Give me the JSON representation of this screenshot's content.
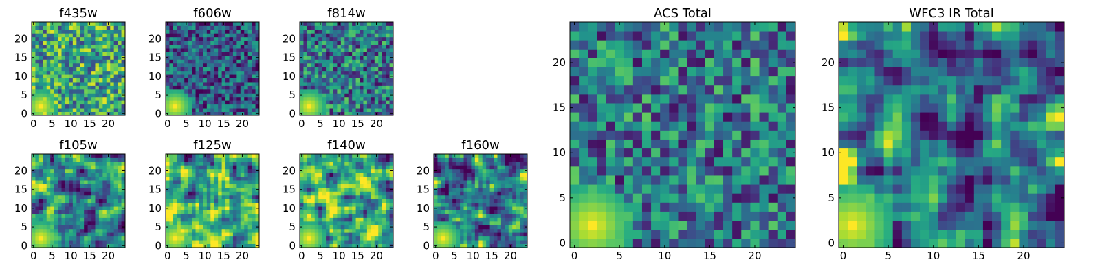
{
  "colormap": "viridis",
  "chart_data": [
    {
      "type": "heatmap",
      "title": "f435w",
      "xticks": [
        0,
        5,
        10,
        15,
        20
      ],
      "yticks": [
        0,
        5,
        10,
        15,
        20
      ],
      "grid_size": 25,
      "style": "noisy-high",
      "bright_blob": {
        "x": 2,
        "y": 2
      }
    },
    {
      "type": "heatmap",
      "title": "f606w",
      "xticks": [
        0,
        5,
        10,
        15,
        20
      ],
      "yticks": [
        0,
        5,
        10,
        15,
        20
      ],
      "grid_size": 25,
      "style": "noisy-low",
      "bright_blob": {
        "x": 2,
        "y": 2
      }
    },
    {
      "type": "heatmap",
      "title": "f814w",
      "xticks": [
        0,
        5,
        10,
        15,
        20
      ],
      "yticks": [
        0,
        5,
        10,
        15,
        20
      ],
      "grid_size": 25,
      "style": "noisy-mid",
      "bright_blob": {
        "x": 2,
        "y": 2
      }
    },
    {
      "type": "heatmap",
      "title": "f105w",
      "xticks": [
        0,
        5,
        10,
        15,
        20
      ],
      "yticks": [
        0,
        5,
        10,
        15,
        20
      ],
      "grid_size": 25,
      "style": "smooth-mid",
      "bright_blob": {
        "x": 2,
        "y": 2
      }
    },
    {
      "type": "heatmap",
      "title": "f125w",
      "xticks": [
        0,
        5,
        10,
        15,
        20
      ],
      "yticks": [
        0,
        5,
        10,
        15,
        20
      ],
      "grid_size": 25,
      "style": "smooth-high",
      "bright_blob": {
        "x": 2,
        "y": 2
      }
    },
    {
      "type": "heatmap",
      "title": "f140w",
      "xticks": [
        0,
        5,
        10,
        15,
        20
      ],
      "yticks": [
        0,
        5,
        10,
        15,
        20
      ],
      "grid_size": 25,
      "style": "smooth-high",
      "bright_blob": {
        "x": 2,
        "y": 2
      }
    },
    {
      "type": "heatmap",
      "title": "f160w",
      "xticks": [
        0,
        5,
        10,
        15,
        20
      ],
      "yticks": [
        0,
        5,
        10,
        15,
        20
      ],
      "grid_size": 25,
      "style": "smooth-mid",
      "bright_blob": {
        "x": 2,
        "y": 2
      }
    },
    {
      "type": "heatmap",
      "title": "ACS Total",
      "xticks": [
        0,
        5,
        10,
        15,
        20
      ],
      "yticks": [
        0,
        5,
        10,
        15,
        20
      ],
      "grid_size": 25,
      "style": "noisy-mid",
      "bright_blob": {
        "x": 2,
        "y": 2
      }
    },
    {
      "type": "heatmap",
      "title": "WFC3 IR Total",
      "xticks": [
        0,
        5,
        10,
        15,
        20
      ],
      "yticks": [
        0,
        5,
        10,
        15,
        20
      ],
      "grid_size": 25,
      "style": "smooth-mid",
      "bright_blob": {
        "x": 1,
        "y": 2
      }
    }
  ]
}
